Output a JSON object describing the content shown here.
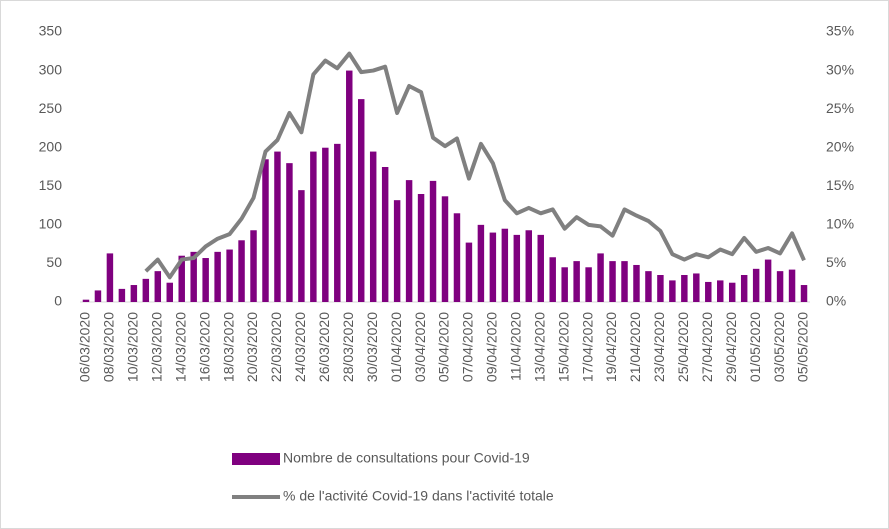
{
  "chart_data": {
    "type": "bar",
    "categories": [
      "06/03/2020",
      null,
      "08/03/2020",
      null,
      "10/03/2020",
      null,
      "12/03/2020",
      null,
      "14/03/2020",
      null,
      "16/03/2020",
      null,
      "18/03/2020",
      null,
      "20/03/2020",
      null,
      "22/03/2020",
      null,
      "24/03/2020",
      null,
      "26/03/2020",
      null,
      "28/03/2020",
      null,
      "30/03/2020",
      null,
      "01/04/2020",
      null,
      "03/04/2020",
      null,
      "05/04/2020",
      null,
      "07/04/2020",
      null,
      "09/04/2020",
      null,
      "11/04/2020",
      null,
      "13/04/2020",
      null,
      "15/04/2020",
      null,
      "17/04/2020",
      null,
      "19/04/2020",
      null,
      "21/04/2020",
      null,
      "23/04/2020",
      null,
      "25/04/2020",
      null,
      "27/04/2020",
      null,
      "29/04/2020",
      null,
      "01/05/2020",
      null,
      "03/05/2020",
      null,
      "05/05/2020"
    ],
    "series": [
      {
        "name": "Nombre de consultations pour Covid-19",
        "type": "bar",
        "color": "#7f007f",
        "values": [
          3,
          15,
          63,
          17,
          22,
          30,
          40,
          25,
          60,
          65,
          57,
          65,
          68,
          80,
          93,
          185,
          195,
          180,
          145,
          195,
          200,
          205,
          300,
          263,
          195,
          175,
          132,
          158,
          140,
          157,
          137,
          115,
          77,
          100,
          90,
          95,
          87,
          93,
          87,
          58,
          45,
          53,
          45,
          63,
          53,
          53,
          48,
          40,
          35,
          28,
          35,
          37,
          26,
          28,
          25,
          35,
          43,
          55,
          40,
          42,
          22
        ]
      },
      {
        "name": "% de l'activité Covid-19 dans l'activité totale",
        "type": "line",
        "axis": "y2",
        "color": "#808080",
        "values": [
          null,
          null,
          null,
          null,
          null,
          4,
          5.5,
          3.2,
          5.5,
          5.7,
          7.2,
          8.2,
          8.8,
          10.8,
          13.5,
          19.5,
          21,
          24.5,
          22,
          29.5,
          31.3,
          30.3,
          32.2,
          29.8,
          30,
          30.5,
          24.5,
          28,
          27.2,
          21.3,
          20.2,
          21.2,
          16,
          20.5,
          18,
          13.2,
          11.5,
          12.2,
          11.5,
          12,
          9.5,
          11,
          10,
          9.8,
          8.6,
          12,
          11.2,
          10.5,
          9.2,
          6.2,
          5.5,
          6.2,
          5.8,
          6.8,
          6.2,
          8.3,
          6.5,
          7,
          6.3,
          8.9,
          5.4
        ]
      }
    ],
    "ylim": [
      0,
      350
    ],
    "yticks": [
      0,
      50,
      100,
      150,
      200,
      250,
      300,
      350
    ],
    "y2lim": [
      0,
      35
    ],
    "y2ticks": [
      {
        "value": 0,
        "label": "0%"
      },
      {
        "value": 5,
        "label": "5%"
      },
      {
        "value": 10,
        "label": "10%"
      },
      {
        "value": 15,
        "label": "15%"
      },
      {
        "value": 20,
        "label": "20%"
      },
      {
        "value": 25,
        "label": "25%"
      },
      {
        "value": 30,
        "label": "30%"
      },
      {
        "value": 35,
        "label": "35%"
      }
    ],
    "legend": "bottom"
  }
}
